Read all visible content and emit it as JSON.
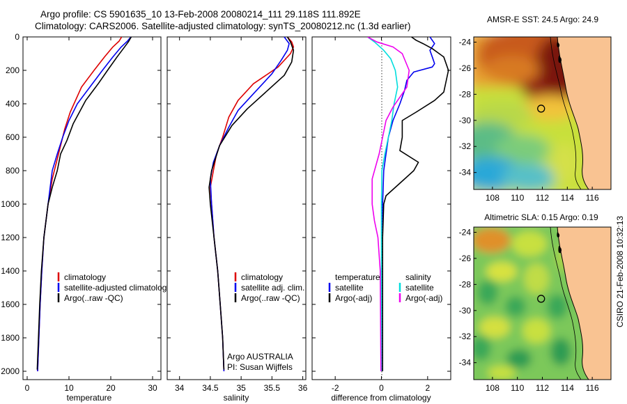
{
  "header": {
    "title_line1": "Argo profile: CS 5901635_10 13-Feb-2008 20080214_111 29.118S 111.892E",
    "title_line2": "Climatology: CARS2006. Satellite-adjusted climatology: synTS_20080212.nc (1.3d earlier)"
  },
  "side_stamp": "CSIRO 21-Feb-2008 10:32:13",
  "colors": {
    "climatology": "#dd0000",
    "satellite": "#0000ee",
    "argo": "#000000",
    "satellite_salinity": "#00dddd",
    "argo_salinity": "#ee00ee",
    "land": "#f9c392"
  },
  "chart_data": [
    {
      "type": "line",
      "id": "temperature",
      "xlabel": "temperature",
      "xlim": [
        -1,
        32
      ],
      "ylim": [
        2050,
        0
      ],
      "xticks": [
        0,
        10,
        20,
        30
      ],
      "yticks": [
        0,
        200,
        400,
        600,
        800,
        1000,
        1200,
        1400,
        1600,
        1800,
        2000
      ],
      "y_reversed": true,
      "legend": [
        "climatology",
        "satellite-adjusted climatology",
        "Argo(..raw -QC)"
      ],
      "series": [
        {
          "name": "climatology",
          "color": "#dd0000",
          "x": [
            22.6,
            22.0,
            20.5,
            18.5,
            16.0,
            13.0,
            10.3,
            9.0,
            8.0,
            7.0,
            6.0,
            5.0,
            4.0,
            3.5,
            3.1,
            2.8,
            2.5
          ],
          "y": [
            0,
            25,
            60,
            120,
            200,
            300,
            450,
            550,
            650,
            750,
            850,
            1000,
            1200,
            1400,
            1600,
            1800,
            2000
          ]
        },
        {
          "name": "satellite",
          "color": "#0000ee",
          "x": [
            24.8,
            24.0,
            22.5,
            20.5,
            18.0,
            15.0,
            12.0,
            10.0,
            8.5,
            7.2,
            6.0,
            5.0,
            4.0,
            3.5,
            3.1,
            2.8,
            2.5
          ],
          "y": [
            0,
            25,
            60,
            120,
            200,
            300,
            400,
            500,
            600,
            700,
            800,
            1000,
            1200,
            1400,
            1600,
            1800,
            2000
          ]
        },
        {
          "name": "Argo",
          "color": "#000000",
          "x": [
            24.9,
            24.2,
            23.0,
            21.5,
            19.5,
            17.0,
            14.0,
            12.5,
            11.0,
            9.5,
            8.0,
            7.2,
            6.0,
            5.0,
            4.0,
            3.4,
            3.0,
            2.7,
            2.4
          ],
          "y": [
            0,
            30,
            70,
            120,
            190,
            280,
            380,
            450,
            520,
            620,
            700,
            800,
            900,
            1000,
            1200,
            1400,
            1600,
            1800,
            1990
          ]
        }
      ]
    },
    {
      "type": "line",
      "id": "salinity",
      "xlabel": "salinity",
      "xlim": [
        33.8,
        36.05
      ],
      "ylim": [
        2050,
        0
      ],
      "xticks": [
        34,
        34.5,
        35,
        35.5,
        36
      ],
      "legend": [
        "climatology",
        "satellite adj. clim.",
        "Argo(..raw -QC)"
      ],
      "notes": [
        "Argo AUSTRALIA",
        "PI: Susan Wijffels"
      ],
      "series": [
        {
          "name": "climatology",
          "color": "#dd0000",
          "x": [
            35.75,
            35.82,
            35.85,
            35.8,
            35.6,
            35.2,
            34.95,
            34.8,
            34.7,
            34.6,
            34.55,
            34.5,
            34.52,
            34.56,
            34.62,
            34.66,
            34.7,
            34.72
          ],
          "y": [
            0,
            30,
            60,
            100,
            180,
            280,
            380,
            480,
            600,
            700,
            800,
            900,
            1000,
            1200,
            1400,
            1600,
            1800,
            2000
          ]
        },
        {
          "name": "satellite",
          "color": "#0000ee",
          "x": [
            35.7,
            35.78,
            35.75,
            35.65,
            35.5,
            35.2,
            34.95,
            34.8,
            34.65,
            34.55,
            34.5,
            34.52,
            34.56,
            34.62,
            34.66,
            34.7,
            34.72
          ],
          "y": [
            0,
            40,
            80,
            140,
            220,
            340,
            440,
            540,
            650,
            750,
            850,
            1000,
            1200,
            1400,
            1600,
            1800,
            2000
          ]
        },
        {
          "name": "Argo",
          "color": "#000000",
          "x": [
            35.75,
            35.8,
            35.85,
            35.82,
            35.7,
            35.4,
            35.1,
            34.85,
            34.65,
            34.52,
            34.48,
            34.5,
            34.56,
            34.62,
            34.66,
            34.7,
            34.72
          ],
          "y": [
            0,
            30,
            80,
            150,
            230,
            330,
            430,
            530,
            650,
            800,
            900,
            1000,
            1200,
            1400,
            1600,
            1800,
            1990
          ]
        }
      ]
    },
    {
      "type": "line",
      "id": "difference",
      "xlabel": "difference from climatology",
      "xlim": [
        -3,
        3
      ],
      "ylim": [
        2050,
        0
      ],
      "xticks": [
        -2,
        0,
        2
      ],
      "legend": {
        "temperature": [
          "temperature",
          "satellite",
          "Argo(-adj)"
        ],
        "salinity": [
          "salinity",
          "satellite",
          "Argo(-adj)"
        ]
      },
      "series": [
        {
          "name": "temperature satellite",
          "color": "#0000ee",
          "x": [
            2.1,
            2.3,
            2.1,
            2.2,
            2.3,
            2.2,
            1.4,
            1.1,
            1.0,
            0.8,
            0.5,
            0.3,
            0.2,
            0.1,
            0.05,
            0.05,
            0.05,
            0.05
          ],
          "y": [
            0,
            40,
            80,
            120,
            160,
            180,
            210,
            260,
            320,
            400,
            500,
            600,
            700,
            800,
            1000,
            1400,
            1800,
            2000
          ]
        },
        {
          "name": "temperature Argo",
          "color": "#000000",
          "x": [
            1.3,
            1.5,
            1.8,
            2.2,
            2.7,
            2.9,
            2.7,
            2.3,
            1.5,
            0.9,
            0.9,
            0.8,
            1.6,
            1.4,
            1.0,
            0.6,
            0.2,
            0.1,
            0.05,
            0.05,
            0.05
          ],
          "y": [
            0,
            20,
            40,
            70,
            120,
            200,
            330,
            380,
            450,
            500,
            600,
            680,
            750,
            800,
            850,
            900,
            950,
            1000,
            1200,
            1600,
            2000
          ]
        },
        {
          "name": "salinity satellite",
          "color": "#00dddd",
          "x": [
            -0.6,
            -0.3,
            0.1,
            0.4,
            0.6,
            0.7,
            0.55,
            0.45,
            0.3,
            0.15,
            0.02,
            0.0,
            0.0,
            0.0
          ],
          "y": [
            0,
            30,
            80,
            130,
            200,
            300,
            400,
            500,
            600,
            700,
            800,
            1000,
            1500,
            2000
          ]
        },
        {
          "name": "salinity Argo",
          "color": "#ee00ee",
          "x": [
            -0.6,
            -0.2,
            0.5,
            0.9,
            1.2,
            1.1,
            0.5,
            0.2,
            0.05,
            -0.1,
            -0.4,
            -0.4,
            -0.3,
            -0.15,
            -0.05,
            -0.02
          ],
          "y": [
            0,
            30,
            60,
            100,
            200,
            300,
            420,
            500,
            600,
            700,
            850,
            1000,
            1100,
            1200,
            1400,
            2000
          ]
        }
      ]
    },
    {
      "type": "heatmap",
      "id": "sst-map",
      "title": "AMSR-E SST: 24.5 Argo: 24.9",
      "xlim": [
        106.5,
        117.5
      ],
      "ylim": [
        -35.3,
        -23.6
      ],
      "xticks": [
        108,
        110,
        112,
        114,
        116
      ],
      "yticks": [
        -24,
        -26,
        -28,
        -30,
        -32,
        -34
      ],
      "marker": {
        "lon": 111.9,
        "lat": -29.1
      }
    },
    {
      "type": "heatmap",
      "id": "sla-map",
      "title": "Altimetric SLA: 0.15 Argo: 0.19",
      "xlim": [
        106.5,
        117.5
      ],
      "ylim": [
        -35.3,
        -23.6
      ],
      "xticks": [
        108,
        110,
        112,
        114,
        116
      ],
      "yticks": [
        -24,
        -26,
        -28,
        -30,
        -32,
        -34
      ],
      "marker": {
        "lon": 111.9,
        "lat": -29.1
      }
    }
  ]
}
